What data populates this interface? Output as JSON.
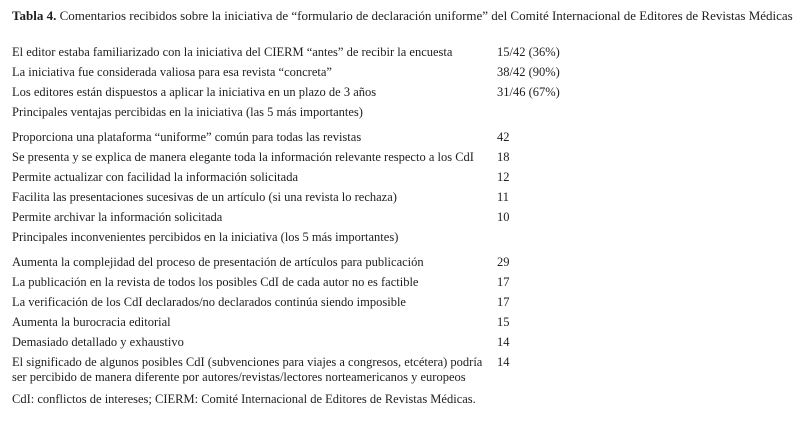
{
  "title": {
    "label": "Tabla 4.",
    "text": " Comentarios recibidos sobre la iniciativa de “formulario de declaración uniforme” del Comité Internacional de Editores de Revistas Médicas"
  },
  "rows": [
    {
      "text": "El editor estaba familiarizado con la iniciativa del CIERM “antes” de recibir la encuesta",
      "value": "15/42 (36%)"
    },
    {
      "text": "La iniciativa fue considerada valiosa para esa revista “concreta”",
      "value": "38/42 (90%)"
    },
    {
      "text": "Los editores están dispuestos a aplicar la iniciativa en un plazo de 3 años",
      "value": "31/46 (67%)"
    },
    {
      "text": "Principales ventajas percibidas en la iniciativa (las 5 más importantes)",
      "value": ""
    },
    {
      "text": "Proporciona una plataforma “uniforme” común para todas las revistas",
      "value": "42"
    },
    {
      "text": "Se presenta y se explica de manera elegante toda la información relevante respecto a los CdI",
      "value": "18"
    },
    {
      "text": "Permite actualizar con facilidad la información solicitada",
      "value": "12"
    },
    {
      "text": "Facilita las presentaciones sucesivas de un artículo (si una revista lo rechaza)",
      "value": "11"
    },
    {
      "text": "Permite archivar la información solicitada",
      "value": "10"
    },
    {
      "text": "Principales inconvenientes percibidos en la iniciativa (los 5 más importantes)",
      "value": ""
    },
    {
      "text": "Aumenta la complejidad del proceso de presentación de artículos para publicación",
      "value": "29"
    },
    {
      "text": "La publicación en la revista de todos los posibles CdI de cada autor no es factible",
      "value": "17"
    },
    {
      "text": "La verificación de los CdI declarados/no declarados continúa siendo imposible",
      "value": "17"
    },
    {
      "text": "Aumenta la burocracia editorial",
      "value": "15"
    },
    {
      "text": "Demasiado detallado y exhaustivo",
      "value": "14"
    },
    {
      "text": "El significado de algunos posibles CdI (subvenciones para viajes a congresos, etcétera) podría ser percibido de manera diferente por autores/revistas/lectores norteamericanos y europeos",
      "value": "14"
    }
  ],
  "footnote": "CdI: conflictos de intereses; CIERM: Comité Internacional de Editores de Revistas Médicas."
}
